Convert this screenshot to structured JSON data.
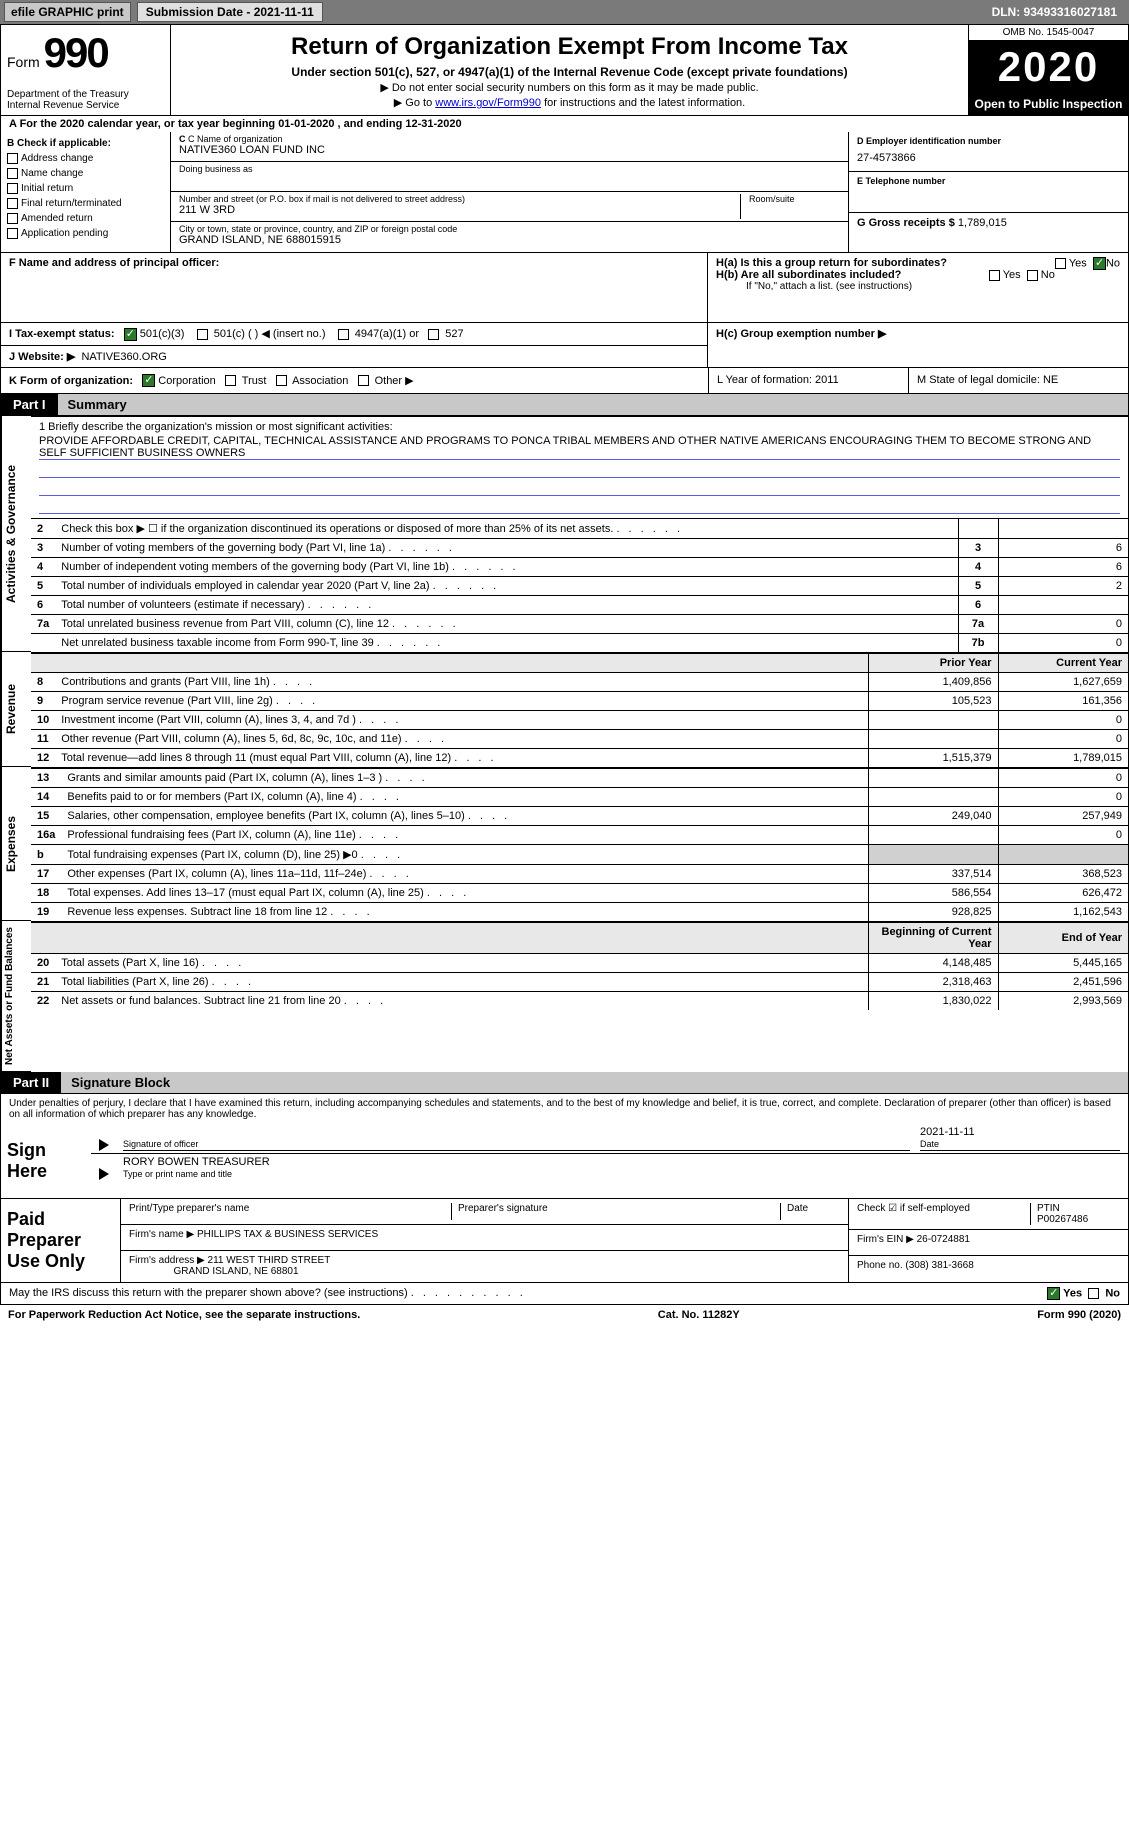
{
  "top": {
    "efile": "efile GRAPHIC print",
    "submission": "Submission Date - 2021-11-11",
    "dln": "DLN: 93493316027181"
  },
  "header": {
    "form_word": "Form",
    "form_no": "990",
    "title": "Return of Organization Exempt From Income Tax",
    "sub1": "Under section 501(c), 527, or 4947(a)(1) of the Internal Revenue Code (except private foundations)",
    "sub2": "▶ Do not enter social security numbers on this form as it may be made public.",
    "sub3_pre": "▶ Go to ",
    "sub3_link": "www.irs.gov/Form990",
    "sub3_post": " for instructions and the latest information.",
    "dept": "Department of the Treasury\nInternal Revenue Service",
    "omb": "OMB No. 1545-0047",
    "year": "2020",
    "open": "Open to Public Inspection"
  },
  "line_a": "A For the 2020 calendar year, or tax year beginning 01-01-2020   , and ending 12-31-2020",
  "sec_b": {
    "hdr": "B Check if applicable:",
    "opts": [
      "Address change",
      "Name change",
      "Initial return",
      "Final return/terminated",
      "Amended return",
      "Application pending"
    ],
    "c_lbl": "C Name of organization",
    "c_val": "NATIVE360 LOAN FUND INC",
    "dba_lbl": "Doing business as",
    "addr_lbl": "Number and street (or P.O. box if mail is not delivered to street address)",
    "room_lbl": "Room/suite",
    "addr_val": "211 W 3RD",
    "city_lbl": "City or town, state or province, country, and ZIP or foreign postal code",
    "city_val": "GRAND ISLAND, NE  688015915",
    "d_lbl": "D Employer identification number",
    "d_val": "27-4573866",
    "e_lbl": "E Telephone number",
    "g_lbl": "G Gross receipts $",
    "g_val": "1,789,015"
  },
  "fh": {
    "f": "F  Name and address of principal officer:",
    "ha": "H(a)  Is this a group return for subordinates?",
    "hb": "H(b)  Are all subordinates included?",
    "hnote": "If \"No,\" attach a list. (see instructions)",
    "hc": "H(c)  Group exemption number ▶",
    "yes": "Yes",
    "no": "No"
  },
  "ij": {
    "i": "I   Tax-exempt status:",
    "i_501c3": "501(c)(3)",
    "i_501c": "501(c) (  ) ◀ (insert no.)",
    "i_4947": "4947(a)(1) or",
    "i_527": "527",
    "j": "J   Website: ▶",
    "j_val": "NATIVE360.ORG"
  },
  "klm": {
    "k": "K Form of organization:",
    "k_corp": "Corporation",
    "k_trust": "Trust",
    "k_assoc": "Association",
    "k_other": "Other ▶",
    "l": "L Year of formation: 2011",
    "m": "M State of legal domicile: NE"
  },
  "part1": {
    "tag": "Part I",
    "title": "Summary"
  },
  "mission": {
    "label": "1  Briefly describe the organization's mission or most significant activities:",
    "text": "PROVIDE AFFORDABLE CREDIT, CAPITAL, TECHNICAL ASSISTANCE AND PROGRAMS TO PONCA TRIBAL MEMBERS AND OTHER NATIVE AMERICANS ENCOURAGING THEM TO BECOME STRONG AND SELF SUFFICIENT BUSINESS OWNERS"
  },
  "gov_lines": [
    {
      "n": "2",
      "t": "Check this box ▶ ☐  if the organization discontinued its operations or disposed of more than 25% of its net assets.",
      "box": "",
      "v": ""
    },
    {
      "n": "3",
      "t": "Number of voting members of the governing body (Part VI, line 1a)",
      "box": "3",
      "v": "6"
    },
    {
      "n": "4",
      "t": "Number of independent voting members of the governing body (Part VI, line 1b)",
      "box": "4",
      "v": "6"
    },
    {
      "n": "5",
      "t": "Total number of individuals employed in calendar year 2020 (Part V, line 2a)",
      "box": "5",
      "v": "2"
    },
    {
      "n": "6",
      "t": "Total number of volunteers (estimate if necessary)",
      "box": "6",
      "v": ""
    },
    {
      "n": "7a",
      "t": "Total unrelated business revenue from Part VIII, column (C), line 12",
      "box": "7a",
      "v": "0"
    },
    {
      "n": "",
      "t": "Net unrelated business taxable income from Form 990-T, line 39",
      "box": "7b",
      "v": "0"
    }
  ],
  "col_hdr": {
    "prior": "Prior Year",
    "curr": "Current Year"
  },
  "rev_lines": [
    {
      "n": "8",
      "t": "Contributions and grants (Part VIII, line 1h)",
      "p": "1,409,856",
      "c": "1,627,659"
    },
    {
      "n": "9",
      "t": "Program service revenue (Part VIII, line 2g)",
      "p": "105,523",
      "c": "161,356"
    },
    {
      "n": "10",
      "t": "Investment income (Part VIII, column (A), lines 3, 4, and 7d )",
      "p": "",
      "c": "0"
    },
    {
      "n": "11",
      "t": "Other revenue (Part VIII, column (A), lines 5, 6d, 8c, 9c, 10c, and 11e)",
      "p": "",
      "c": "0"
    },
    {
      "n": "12",
      "t": "Total revenue—add lines 8 through 11 (must equal Part VIII, column (A), line 12)",
      "p": "1,515,379",
      "c": "1,789,015"
    }
  ],
  "exp_lines": [
    {
      "n": "13",
      "t": "Grants and similar amounts paid (Part IX, column (A), lines 1–3 )",
      "p": "",
      "c": "0"
    },
    {
      "n": "14",
      "t": "Benefits paid to or for members (Part IX, column (A), line 4)",
      "p": "",
      "c": "0"
    },
    {
      "n": "15",
      "t": "Salaries, other compensation, employee benefits (Part IX, column (A), lines 5–10)",
      "p": "249,040",
      "c": "257,949"
    },
    {
      "n": "16a",
      "t": "Professional fundraising fees (Part IX, column (A), line 11e)",
      "p": "",
      "c": "0"
    },
    {
      "n": "b",
      "t": "Total fundraising expenses (Part IX, column (D), line 25) ▶0",
      "p": "SHADE",
      "c": "SHADE"
    },
    {
      "n": "17",
      "t": "Other expenses (Part IX, column (A), lines 11a–11d, 11f–24e)",
      "p": "337,514",
      "c": "368,523"
    },
    {
      "n": "18",
      "t": "Total expenses. Add lines 13–17 (must equal Part IX, column (A), line 25)",
      "p": "586,554",
      "c": "626,472"
    },
    {
      "n": "19",
      "t": "Revenue less expenses. Subtract line 18 from line 12",
      "p": "928,825",
      "c": "1,162,543"
    }
  ],
  "na_hdr": {
    "beg": "Beginning of Current Year",
    "end": "End of Year"
  },
  "na_lines": [
    {
      "n": "20",
      "t": "Total assets (Part X, line 16)",
      "p": "4,148,485",
      "c": "5,445,165"
    },
    {
      "n": "21",
      "t": "Total liabilities (Part X, line 26)",
      "p": "2,318,463",
      "c": "2,451,596"
    },
    {
      "n": "22",
      "t": "Net assets or fund balances. Subtract line 21 from line 20",
      "p": "1,830,022",
      "c": "2,993,569"
    }
  ],
  "part2": {
    "tag": "Part II",
    "title": "Signature Block"
  },
  "sig_note": "Under penalties of perjury, I declare that I have examined this return, including accompanying schedules and statements, and to the best of my knowledge and belief, it is true, correct, and complete. Declaration of preparer (other than officer) is based on all information of which preparer has any knowledge.",
  "sign": {
    "hdr": "Sign Here",
    "sig_lbl": "Signature of officer",
    "date_lbl": "Date",
    "date_val": "2021-11-11",
    "name_lbl": "Type or print name and title",
    "name_val": "RORY BOWEN  TREASURER"
  },
  "paid": {
    "hdr": "Paid Preparer Use Only",
    "col1": "Print/Type preparer's name",
    "col2": "Preparer's signature",
    "col3": "Date",
    "check_lbl": "Check ☑ if self-employed",
    "ptin_lbl": "PTIN",
    "ptin_val": "P00267486",
    "firm_name_lbl": "Firm's name ▶",
    "firm_name": "PHILLIPS TAX & BUSINESS SERVICES",
    "firm_ein_lbl": "Firm's EIN ▶",
    "firm_ein": "26-0724881",
    "firm_addr_lbl": "Firm's address ▶",
    "firm_addr": "211 WEST THIRD STREET",
    "firm_city": "GRAND ISLAND, NE  68801",
    "phone_lbl": "Phone no.",
    "phone": "(308) 381-3668"
  },
  "footer": {
    "q": "May the IRS discuss this return with the preparer shown above? (see instructions)",
    "paperwork": "For Paperwork Reduction Act Notice, see the separate instructions.",
    "cat": "Cat. No. 11282Y",
    "form": "Form 990 (2020)"
  },
  "vlabels": {
    "gov": "Activities & Governance",
    "rev": "Revenue",
    "exp": "Expenses",
    "na": "Net Assets or Fund Balances"
  }
}
